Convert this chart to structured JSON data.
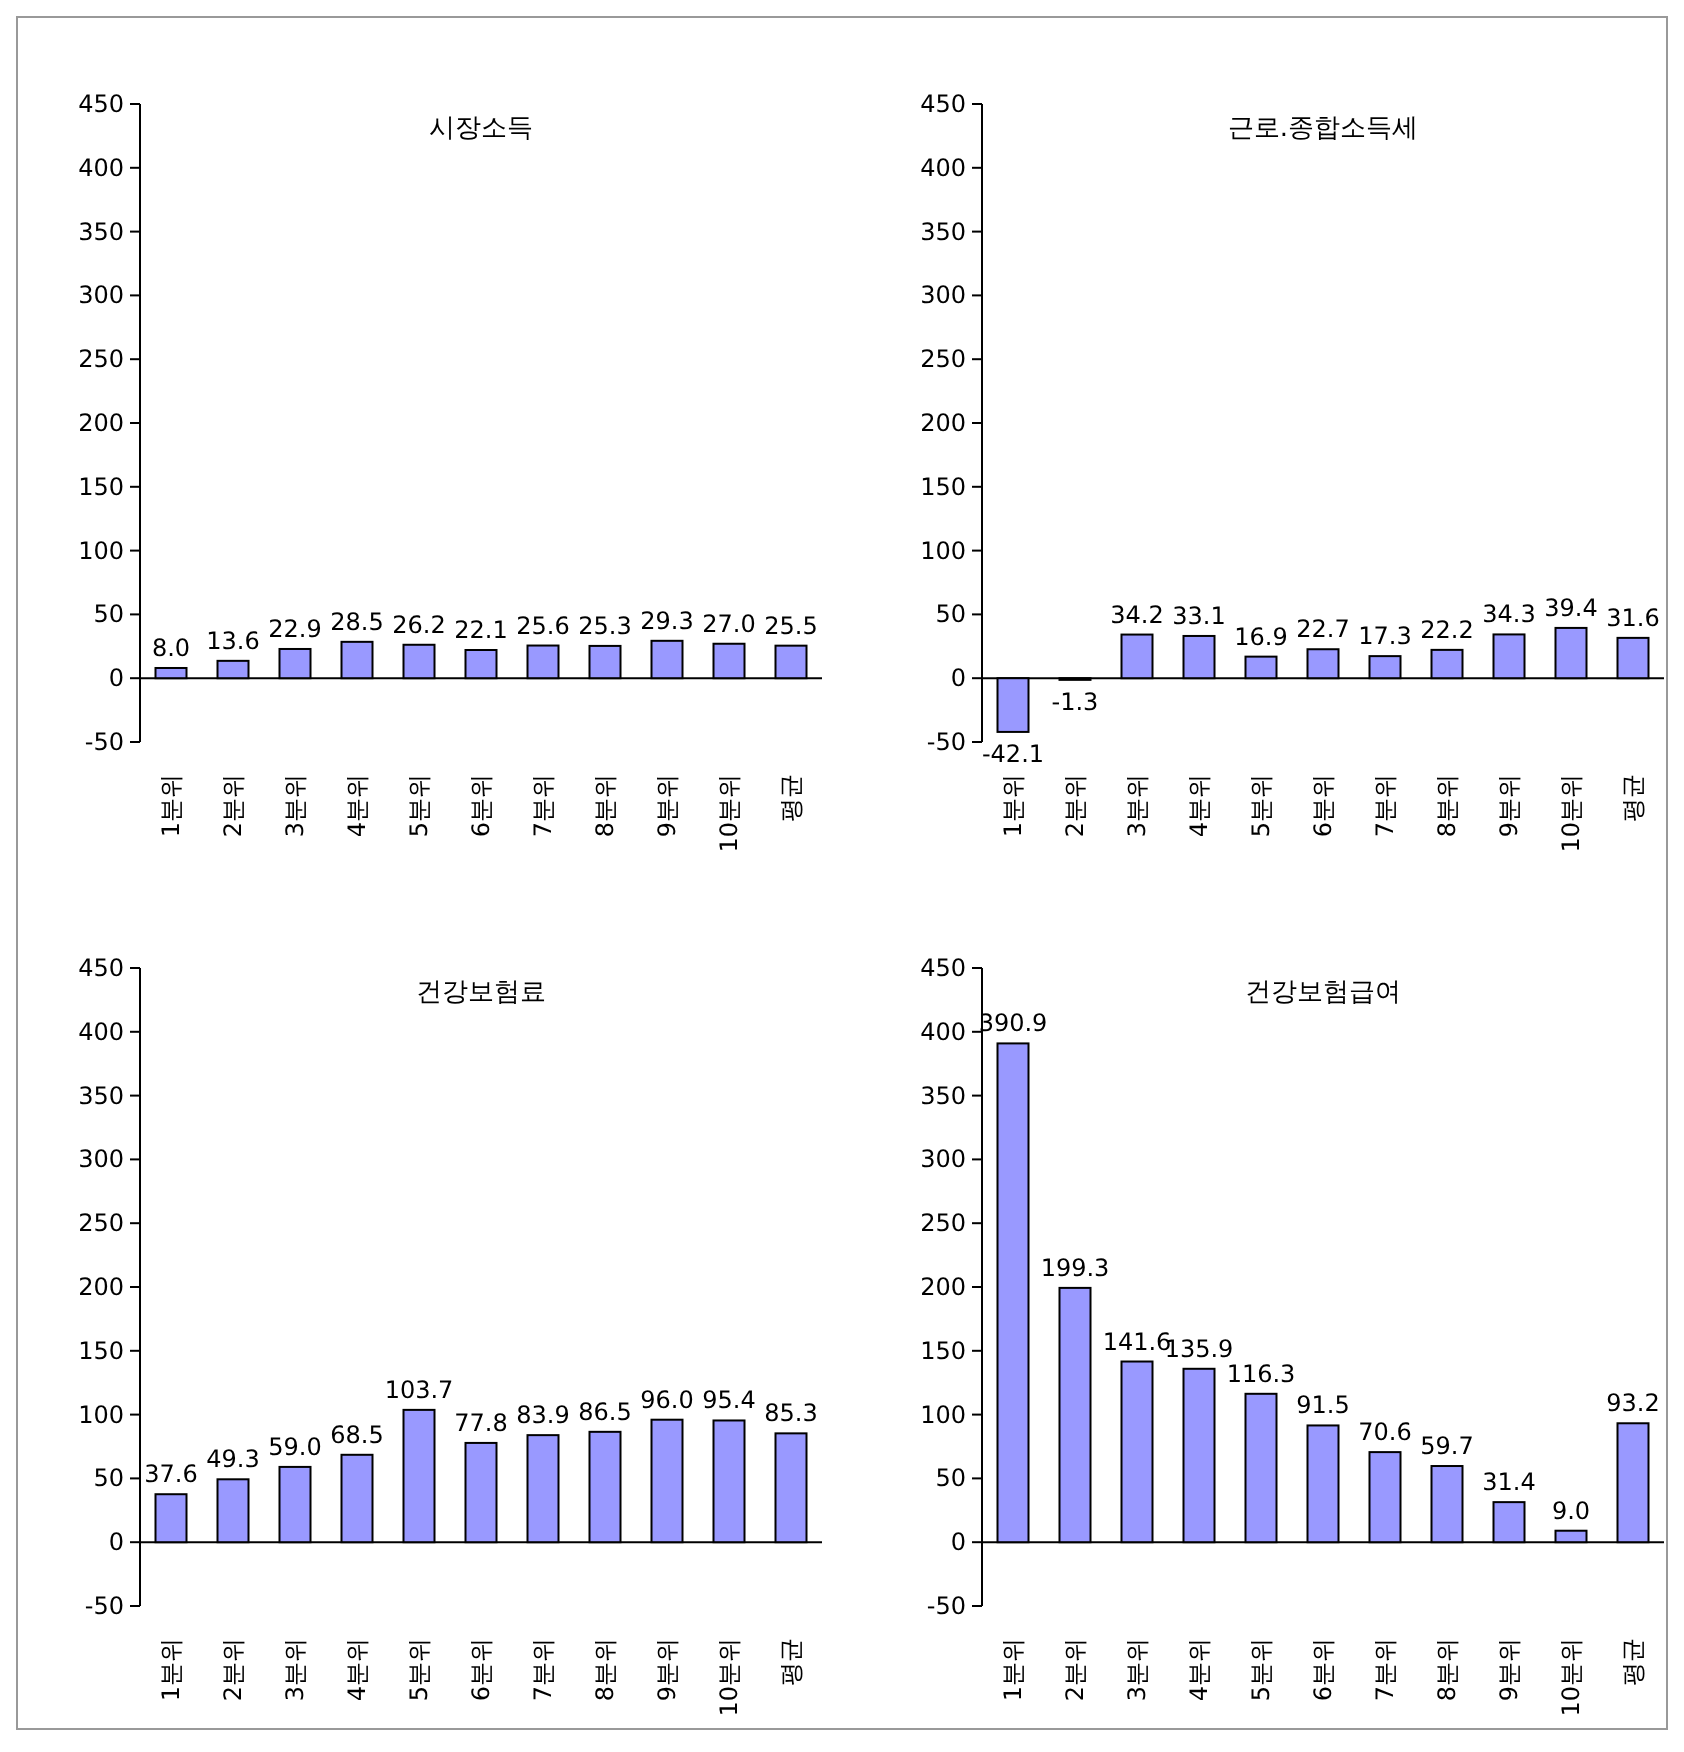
{
  "chart_data": [
    {
      "type": "bar",
      "title": "시장소득",
      "categories": [
        "1분위",
        "2분위",
        "3분위",
        "4분위",
        "5분위",
        "6분위",
        "7분위",
        "8분위",
        "9분위",
        "10분위",
        "평균"
      ],
      "values": [
        8.0,
        13.6,
        22.9,
        28.5,
        26.2,
        22.1,
        25.6,
        25.3,
        29.3,
        27.0,
        25.5
      ],
      "value_labels": [
        "8.0",
        "13.6",
        "22.9",
        "28.5",
        "26.2",
        "22.1",
        "25.6",
        "25.3",
        "29.3",
        "27.0",
        "25.5"
      ],
      "color": "#9999ff",
      "ylim": [
        -50,
        450
      ],
      "yticks": [
        -50,
        0,
        50,
        100,
        150,
        200,
        250,
        300,
        350,
        400,
        450
      ]
    },
    {
      "type": "bar",
      "title": "근로.종합소득세",
      "categories": [
        "1분위",
        "2분위",
        "3분위",
        "4분위",
        "5분위",
        "6분위",
        "7분위",
        "8분위",
        "9분위",
        "10분위",
        "평균"
      ],
      "values": [
        -42.1,
        -1.3,
        34.2,
        33.1,
        16.9,
        22.7,
        17.3,
        22.2,
        34.3,
        39.4,
        31.6
      ],
      "value_labels": [
        "-42.1",
        "-1.3",
        "34.2",
        "33.1",
        "16.9",
        "22.7",
        "17.3",
        "22.2",
        "34.3",
        "39.4",
        "31.6"
      ],
      "color": "#9999ff",
      "ylim": [
        -50,
        450
      ],
      "yticks": [
        -50,
        0,
        50,
        100,
        150,
        200,
        250,
        300,
        350,
        400,
        450
      ]
    },
    {
      "type": "bar",
      "title": "건강보험료",
      "categories": [
        "1분위",
        "2분위",
        "3분위",
        "4분위",
        "5분위",
        "6분위",
        "7분위",
        "8분위",
        "9분위",
        "10분위",
        "평균"
      ],
      "values": [
        37.6,
        49.3,
        59.0,
        68.5,
        103.7,
        77.8,
        83.9,
        86.5,
        96.0,
        95.4,
        85.3
      ],
      "value_labels": [
        "37.6",
        "49.3",
        "59.0",
        "68.5",
        "103.7",
        "77.8",
        "83.9",
        "86.5",
        "96.0",
        "95.4",
        "85.3"
      ],
      "color": "#9999ff",
      "ylim": [
        -50,
        450
      ],
      "yticks": [
        -50,
        0,
        50,
        100,
        150,
        200,
        250,
        300,
        350,
        400,
        450
      ]
    },
    {
      "type": "bar",
      "title": "건강보험급여",
      "categories": [
        "1분위",
        "2분위",
        "3분위",
        "4분위",
        "5분위",
        "6분위",
        "7분위",
        "8분위",
        "9분위",
        "10분위",
        "평균"
      ],
      "values": [
        390.9,
        199.3,
        141.6,
        135.9,
        116.3,
        91.5,
        70.6,
        59.7,
        31.4,
        9.0,
        93.2
      ],
      "value_labels": [
        "390.9",
        "199.3",
        "141.6",
        "135.9",
        "116.3",
        "91.5",
        "70.6",
        "59.7",
        "31.4",
        "9.0",
        "93.2"
      ],
      "color": "#9999ff",
      "ylim": [
        -50,
        450
      ],
      "yticks": [
        -50,
        0,
        50,
        100,
        150,
        200,
        250,
        300,
        350,
        400,
        450
      ]
    }
  ]
}
